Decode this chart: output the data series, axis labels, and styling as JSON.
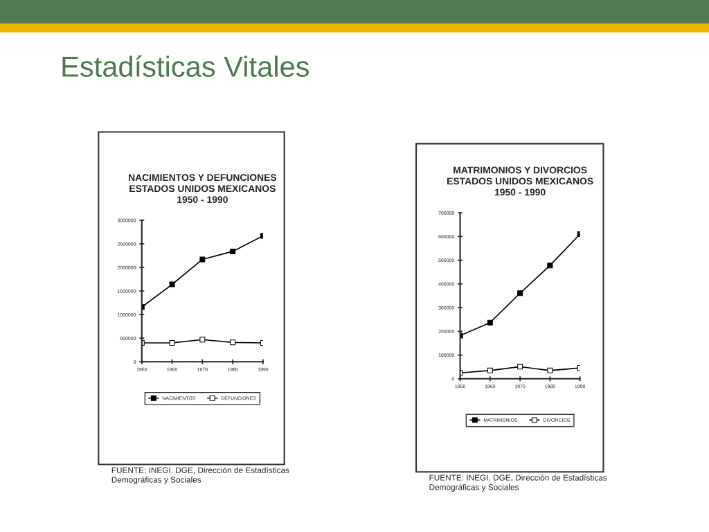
{
  "chart_data": [
    {
      "type": "line",
      "title": "NACIMIENTOS Y DEFUNCIONES\nESTADOS UNIDOS MEXICANOS\n1950 - 1990",
      "x": [
        1950,
        1960,
        1970,
        1980,
        1990
      ],
      "series": [
        {
          "name": "NACIMIENTOS",
          "color": "#000000",
          "marker": "square",
          "values": [
            1160000,
            1640000,
            2170000,
            2340000,
            2670000
          ]
        },
        {
          "name": "DEFUNCIONES",
          "color": "#000000",
          "marker": "square",
          "values": [
            400000,
            400000,
            470000,
            410000,
            400000
          ]
        }
      ],
      "xlim": [
        1950,
        1990
      ],
      "xticks": [
        1950,
        1960,
        1970,
        1980,
        1990
      ],
      "ylim": [
        0,
        3000000
      ],
      "yticks": [
        0,
        500000,
        1000000,
        1500000,
        2000000,
        2500000,
        3000000
      ],
      "grid": false,
      "legend": "bottom",
      "annotations": [
        "Estadísticas Vitales",
        "FUENTE: INEGI. DGE, Dirección de Estadísticas\nDemográficas y Sociales"
      ]
    },
    {
      "type": "line",
      "title": "MATRIMONIOS Y DIVORCIOS\nESTADOS UNIDOS MEXICANOS\n1950 - 1990",
      "x": [
        1950,
        1960,
        1970,
        1980,
        1990
      ],
      "series": [
        {
          "name": "MATRIMONIOS",
          "color": "#000000",
          "marker": "square",
          "values": [
            182000,
            237000,
            361000,
            478000,
            610000
          ]
        },
        {
          "name": "DIVORCIOS",
          "color": "#000000",
          "marker": "square",
          "values": [
            25000,
            35000,
            51000,
            35000,
            46000
          ]
        }
      ],
      "xlim": [
        1950,
        1990
      ],
      "xticks": [
        1950,
        1960,
        1970,
        1980,
        1990
      ],
      "ylim": [
        0,
        700000
      ],
      "yticks": [
        0,
        100000,
        200000,
        300000,
        400000,
        500000,
        600000,
        700000
      ],
      "grid": false,
      "legend": "bottom",
      "annotations": [
        "FUENTE: INEGI. DGE, Dirección de Estadísticas\nDemográficas y Sociales"
      ]
    }
  ]
}
